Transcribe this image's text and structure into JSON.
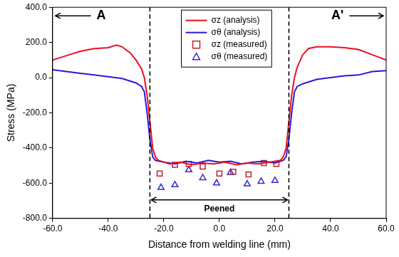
{
  "chart_data": {
    "type": "scatter",
    "x_label": "Distance from welding line (mm)",
    "y_label": "Stress (MPa)",
    "xlim": [
      -60,
      60
    ],
    "xticks": [
      {
        "value": -60,
        "label": "-60.0"
      },
      {
        "value": -40,
        "label": "-40.0"
      },
      {
        "value": -20,
        "label": "-20.0"
      },
      {
        "value": 0,
        "label": "0.0"
      },
      {
        "value": 20,
        "label": "20.0"
      },
      {
        "value": 40,
        "label": "40.0"
      },
      {
        "value": 60,
        "label": "60.0"
      }
    ],
    "ylim": [
      -800,
      400
    ],
    "yticks": [
      {
        "value": -800,
        "label": "-800.0"
      },
      {
        "value": -600,
        "label": "-600.0"
      },
      {
        "value": -400,
        "label": "-400.0"
      },
      {
        "value": -200,
        "label": "-200.0"
      },
      {
        "value": 0,
        "label": "0.0"
      },
      {
        "value": 200,
        "label": "200.0"
      },
      {
        "value": 400,
        "label": "400.0"
      }
    ],
    "grid": false,
    "legend": "top",
    "series": [
      {
        "name": "σz (analysis)",
        "type": "line",
        "color": "#e8101e",
        "line_style": "solid",
        "x": [
          -60,
          -55,
          -50,
          -45,
          -40,
          -37,
          -35,
          -32,
          -30,
          -28,
          -27,
          -26,
          -25,
          -24,
          -23,
          -22,
          -18,
          -14,
          -10,
          -6,
          -2,
          2,
          6,
          10,
          14,
          18,
          22,
          23,
          24,
          25,
          26,
          27,
          28,
          30,
          32,
          35,
          40,
          45,
          50,
          55,
          60
        ],
        "values": [
          100,
          125,
          150,
          165,
          170,
          185,
          175,
          140,
          100,
          50,
          0,
          -100,
          -250,
          -400,
          -450,
          -470,
          -490,
          -480,
          -495,
          -485,
          -490,
          -480,
          -495,
          -485,
          -490,
          -480,
          -470,
          -450,
          -400,
          -250,
          -100,
          0,
          60,
          130,
          165,
          175,
          175,
          170,
          160,
          130,
          100
        ]
      },
      {
        "name": "σθ (analysis)",
        "type": "line",
        "color": "#2a1ad8",
        "line_style": "solid",
        "x": [
          -60,
          -55,
          -50,
          -45,
          -40,
          -35,
          -32,
          -30,
          -28,
          -27,
          -26,
          -25,
          -24,
          -23,
          -20,
          -16,
          -12,
          -8,
          -4,
          0,
          4,
          8,
          12,
          16,
          20,
          23,
          24,
          25,
          26,
          27,
          28,
          30,
          35,
          40,
          45,
          50,
          55,
          60
        ],
        "values": [
          45,
          35,
          25,
          15,
          5,
          -5,
          -20,
          -30,
          -50,
          -80,
          -200,
          -350,
          -450,
          -470,
          -480,
          -490,
          -475,
          -485,
          -470,
          -480,
          -475,
          -490,
          -480,
          -475,
          -485,
          -470,
          -450,
          -350,
          -200,
          -80,
          -50,
          -35,
          -10,
          0,
          10,
          15,
          35,
          40
        ]
      },
      {
        "name": "σz (measured)",
        "type": "scatter",
        "color": "#c0202a",
        "marker": "square",
        "x": [
          -21.5,
          -16,
          -11,
          -6,
          0,
          5,
          10.5,
          16,
          20.5
        ],
        "values": [
          -545,
          -495,
          -490,
          -505,
          -545,
          -535,
          -550,
          -485,
          -490
        ]
      },
      {
        "name": "σθ (measured)",
        "type": "scatter",
        "color": "#3a2ac8",
        "marker": "triangle",
        "x": [
          -21,
          -16,
          -11,
          -6,
          -1,
          4,
          10,
          15,
          20
        ],
        "values": [
          -625,
          -610,
          -525,
          -570,
          -600,
          -540,
          -605,
          -590,
          -585
        ]
      }
    ],
    "boundaries": {
      "x": [
        -25,
        25
      ],
      "line_style": "dashed"
    },
    "annotations": [
      {
        "text": "A",
        "x": [
          -60,
          -25
        ]
      },
      {
        "text": "Peened",
        "x": [
          -25,
          25
        ]
      },
      {
        "text": "A'",
        "x": [
          25,
          60
        ]
      }
    ]
  }
}
